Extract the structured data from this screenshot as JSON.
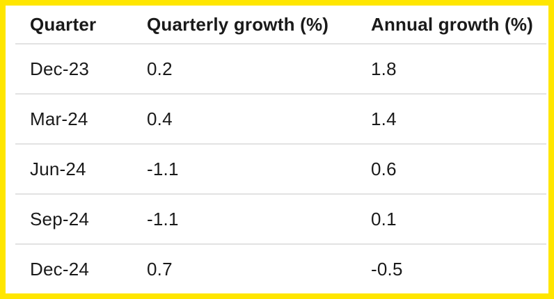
{
  "table": {
    "columns": [
      "Quarter",
      "Quarterly growth (%)",
      "Annual growth (%)"
    ],
    "rows": [
      [
        "Dec-23",
        "0.2",
        "1.8"
      ],
      [
        "Mar-24",
        "0.4",
        "1.4"
      ],
      [
        "Jun-24",
        "-1.1",
        "0.6"
      ],
      [
        "Sep-24",
        "-1.1",
        "0.1"
      ],
      [
        "Dec-24",
        "0.7",
        "-0.5"
      ]
    ]
  },
  "chart_data": {
    "type": "table",
    "title": "",
    "columns": [
      "Quarter",
      "Quarterly growth (%)",
      "Annual growth (%)"
    ],
    "rows": [
      {
        "quarter": "Dec-23",
        "quarterly_growth_pct": 0.2,
        "annual_growth_pct": 1.8
      },
      {
        "quarter": "Mar-24",
        "quarterly_growth_pct": 0.4,
        "annual_growth_pct": 1.4
      },
      {
        "quarter": "Jun-24",
        "quarterly_growth_pct": -1.1,
        "annual_growth_pct": 0.6
      },
      {
        "quarter": "Sep-24",
        "quarterly_growth_pct": -1.1,
        "annual_growth_pct": 0.1
      },
      {
        "quarter": "Dec-24",
        "quarterly_growth_pct": 0.7,
        "annual_growth_pct": -0.5
      }
    ],
    "layout": {
      "header_bold": true,
      "row_dividers": true,
      "gridlines": "horizontal-only"
    }
  },
  "colors": {
    "highlight_border": "#FFE600",
    "divider": "#E2E2E2",
    "text": "#1A1A1A",
    "background": "#FFFFFF"
  }
}
